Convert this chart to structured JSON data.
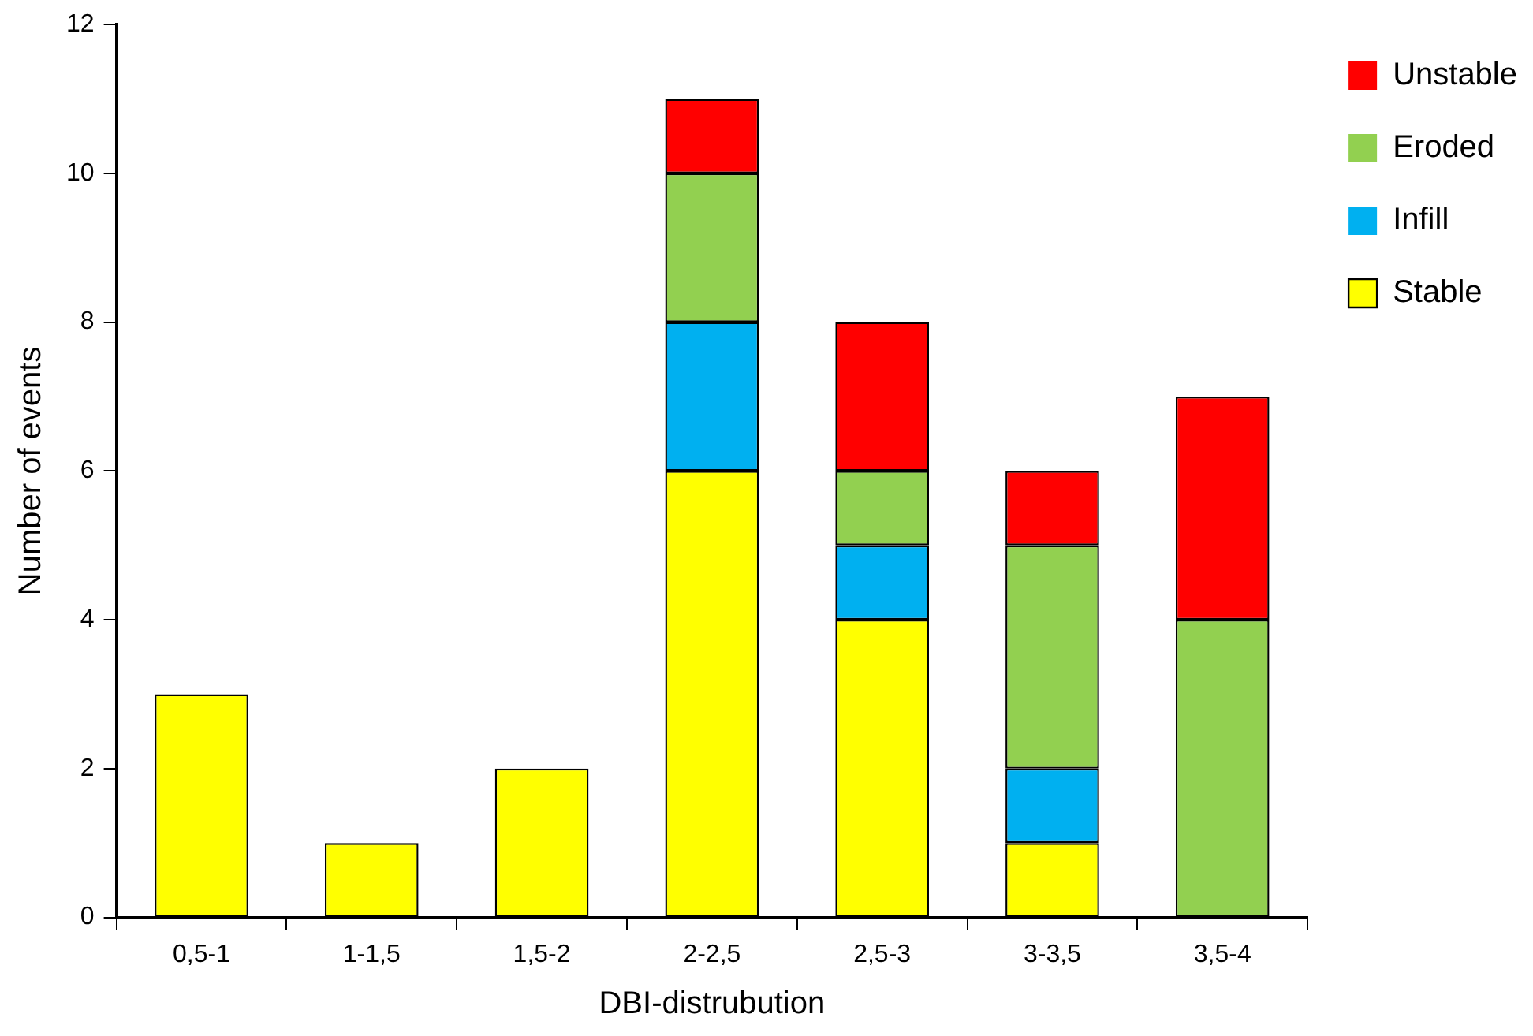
{
  "chart_data": {
    "type": "bar",
    "xlabel": "DBI-distrubution",
    "ylabel": "Number of events",
    "categories": [
      "0,5-1",
      "1-1,5",
      "1,5-2",
      "2-2,5",
      "2,5-3",
      "3-3,5",
      "3,5-4"
    ],
    "stacked": true,
    "ylim": [
      0,
      12
    ],
    "yticks": [
      0,
      2,
      4,
      6,
      8,
      10,
      12
    ],
    "grid": false,
    "legend": "right",
    "series": [
      {
        "name": "Stable",
        "color": "#ffff00",
        "values": [
          3,
          1,
          2,
          6,
          4,
          1,
          0
        ]
      },
      {
        "name": "Infill",
        "color": "#00b0f0",
        "values": [
          0,
          0,
          0,
          2,
          1,
          1,
          0
        ]
      },
      {
        "name": "Eroded",
        "color": "#92d050",
        "values": [
          0,
          0,
          0,
          2,
          1,
          3,
          4
        ]
      },
      {
        "name": "Unstable",
        "color": "#ff0000",
        "values": [
          0,
          0,
          0,
          1,
          2,
          1,
          3
        ]
      }
    ]
  }
}
